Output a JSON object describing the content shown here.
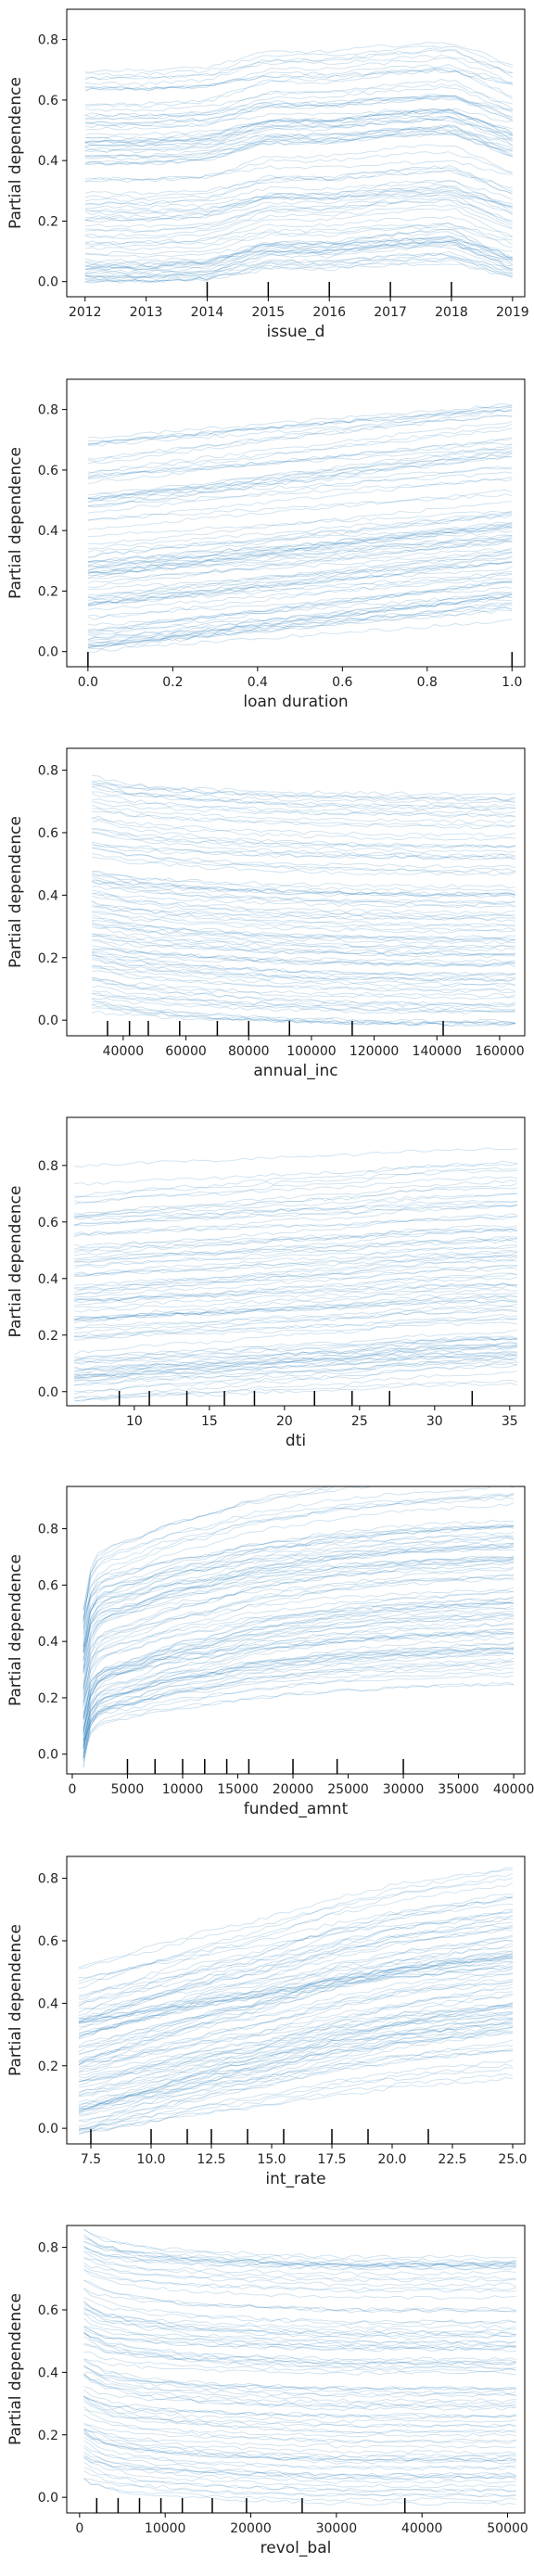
{
  "figure": {
    "background": "#ffffff",
    "line_color": "#1f77b4",
    "rug_color": "#000000"
  },
  "chart_data": [
    {
      "type": "line",
      "xlabel": "issue_d",
      "ylabel": "Partial dependence",
      "xlim": [
        2011.7,
        2019.2
      ],
      "ylim": [
        -0.05,
        0.9
      ],
      "xticks": [
        2012,
        2013,
        2014,
        2015,
        2016,
        2017,
        2018,
        2019
      ],
      "xtick_labels": [
        "2012",
        "2013",
        "2014",
        "2015",
        "2016",
        "2017",
        "2018",
        "2019"
      ],
      "yticks": [
        0.0,
        0.2,
        0.4,
        0.6,
        0.8
      ],
      "ytick_labels": [
        "0.0",
        "0.2",
        "0.4",
        "0.6",
        "0.8"
      ],
      "x": [
        2012,
        2013,
        2014,
        2015,
        2016,
        2017,
        2018,
        2019
      ],
      "shape": [
        0.0,
        0.0,
        0.01,
        0.06,
        0.06,
        0.08,
        0.09,
        0.02
      ],
      "base_range": [
        0.0,
        0.7
      ],
      "n_lines": 90,
      "rug": [
        2014,
        2015,
        2016,
        2017,
        2018
      ],
      "chart_type": "ice"
    },
    {
      "type": "line",
      "xlabel": "loan duration",
      "ylabel": "Partial dependence",
      "xlim": [
        -0.05,
        1.03
      ],
      "ylim": [
        -0.05,
        0.9
      ],
      "xticks": [
        0.0,
        0.2,
        0.4,
        0.6,
        0.8,
        1.0
      ],
      "xtick_labels": [
        "0.0",
        "0.2",
        "0.4",
        "0.6",
        "0.8",
        "1.0"
      ],
      "yticks": [
        0.0,
        0.2,
        0.4,
        0.6,
        0.8
      ],
      "ytick_labels": [
        "0.0",
        "0.2",
        "0.4",
        "0.6",
        "0.8"
      ],
      "x": [
        0.0,
        1.0
      ],
      "shape": [
        0.0,
        0.13
      ],
      "base_range": [
        0.0,
        0.71
      ],
      "n_lines": 90,
      "rug": [
        0.0,
        1.0
      ],
      "chart_type": "ice"
    },
    {
      "type": "line",
      "xlabel": "annual_inc",
      "ylabel": "Partial dependence",
      "xlim": [
        22000,
        168000
      ],
      "ylim": [
        -0.05,
        0.87
      ],
      "xticks": [
        40000,
        60000,
        80000,
        100000,
        120000,
        140000,
        160000
      ],
      "xtick_labels": [
        "40000",
        "60000",
        "80000",
        "100000",
        "120000",
        "140000",
        "160000"
      ],
      "yticks": [
        0.0,
        0.2,
        0.4,
        0.6,
        0.8
      ],
      "ytick_labels": [
        "0.0",
        "0.2",
        "0.4",
        "0.6",
        "0.8"
      ],
      "x": [
        30000,
        36000,
        42000,
        48000,
        55000,
        62000,
        70000,
        80000,
        90000,
        110000,
        140000,
        165000
      ],
      "shape": [
        0.06,
        0.05,
        0.04,
        0.035,
        0.03,
        0.025,
        0.02,
        0.015,
        0.01,
        0.005,
        0.0,
        0.0
      ],
      "base_range": [
        -0.02,
        0.74
      ],
      "n_lines": 90,
      "rug": [
        35000,
        42000,
        48000,
        58000,
        70000,
        80000,
        93000,
        113000,
        142000
      ],
      "chart_type": "ice"
    },
    {
      "type": "line",
      "xlabel": "dti",
      "ylabel": "Partial dependence",
      "xlim": [
        5.5,
        36
      ],
      "ylim": [
        -0.05,
        0.97
      ],
      "xticks": [
        5,
        10,
        15,
        20,
        25,
        30,
        35
      ],
      "xtick_labels": [
        "5",
        "10",
        "15",
        "20",
        "25",
        "30",
        "35"
      ],
      "yticks": [
        0.0,
        0.2,
        0.4,
        0.6,
        0.8
      ],
      "ytick_labels": [
        "0.0",
        "0.2",
        "0.4",
        "0.6",
        "0.8"
      ],
      "x": [
        6,
        9,
        11,
        13.5,
        16,
        18,
        22,
        24.5,
        27,
        30,
        32.5,
        35.5
      ],
      "shape": [
        0.0,
        0.01,
        0.02,
        0.025,
        0.03,
        0.04,
        0.05,
        0.055,
        0.07,
        0.08,
        0.085,
        0.09
      ],
      "base_range": [
        -0.03,
        0.8
      ],
      "n_lines": 90,
      "rug": [
        9,
        11,
        13.5,
        16,
        18,
        22,
        24.5,
        27,
        32.5
      ],
      "chart_type": "ice"
    },
    {
      "type": "line",
      "xlabel": "funded_amnt",
      "ylabel": "Partial dependence",
      "xlim": [
        -500,
        41000
      ],
      "ylim": [
        -0.07,
        0.95
      ],
      "xticks": [
        0,
        5000,
        10000,
        15000,
        20000,
        25000,
        30000,
        35000,
        40000
      ],
      "xtick_labels": [
        "0",
        "5000",
        "10000",
        "15000",
        "20000",
        "25000",
        "30000",
        "35000",
        "40000"
      ],
      "yticks": [
        0.0,
        0.2,
        0.4,
        0.6,
        0.8
      ],
      "ytick_labels": [
        "0.0",
        "0.2",
        "0.4",
        "0.6",
        "0.8"
      ],
      "x": [
        1000,
        1500,
        2500,
        4000,
        6000,
        8000,
        10000,
        12000,
        14000,
        16000,
        20000,
        24000,
        30000,
        35000,
        40000
      ],
      "shape": [
        0.0,
        0.12,
        0.18,
        0.2,
        0.22,
        0.25,
        0.27,
        0.28,
        0.3,
        0.32,
        0.34,
        0.36,
        0.38,
        0.39,
        0.4
      ],
      "base_range": [
        -0.05,
        0.52
      ],
      "n_lines": 90,
      "rug": [
        5000,
        7500,
        10000,
        12000,
        14000,
        16000,
        20000,
        24000,
        30000
      ],
      "chart_type": "ice"
    },
    {
      "type": "line",
      "xlabel": "int_rate",
      "ylabel": "Partial dependence",
      "xlim": [
        6.5,
        25.5
      ],
      "ylim": [
        -0.05,
        0.87
      ],
      "xticks": [
        7.5,
        10.0,
        12.5,
        15.0,
        17.5,
        20.0,
        22.5,
        25.0
      ],
      "xtick_labels": [
        "7.5",
        "10.0",
        "12.5",
        "15.0",
        "17.5",
        "20.0",
        "22.5",
        "25.0"
      ],
      "yticks": [
        0.0,
        0.2,
        0.4,
        0.6,
        0.8
      ],
      "ytick_labels": [
        "0.0",
        "0.2",
        "0.4",
        "0.6",
        "0.8"
      ],
      "x": [
        7.0,
        8.0,
        9.0,
        10.0,
        11.0,
        12.0,
        13.0,
        14.0,
        15.0,
        16.0,
        17.0,
        18.0,
        19.0,
        20.0,
        21.0,
        22.0,
        23.0,
        24.0,
        25.0
      ],
      "shape": [
        0.0,
        0.02,
        0.04,
        0.06,
        0.08,
        0.1,
        0.12,
        0.13,
        0.15,
        0.17,
        0.19,
        0.21,
        0.22,
        0.24,
        0.25,
        0.26,
        0.27,
        0.28,
        0.29
      ],
      "base_range": [
        -0.02,
        0.52
      ],
      "n_lines": 90,
      "rug": [
        7.5,
        10.0,
        11.5,
        12.5,
        14.0,
        15.5,
        17.5,
        19.0,
        21.5
      ],
      "chart_type": "ice"
    },
    {
      "type": "line",
      "xlabel": "revol_bal",
      "ylabel": "Partial dependence",
      "xlim": [
        -1500,
        52000
      ],
      "ylim": [
        -0.05,
        0.87
      ],
      "xticks": [
        0,
        10000,
        20000,
        30000,
        40000,
        50000
      ],
      "xtick_labels": [
        "0",
        "10000",
        "20000",
        "30000",
        "40000",
        "50000"
      ],
      "yticks": [
        0.0,
        0.2,
        0.4,
        0.6,
        0.8
      ],
      "ytick_labels": [
        "0.0",
        "0.2",
        "0.4",
        "0.6",
        "0.8"
      ],
      "x": [
        500,
        1500,
        3000,
        5000,
        7500,
        10000,
        12500,
        15000,
        20000,
        25000,
        30000,
        40000,
        51000
      ],
      "shape": [
        0.08,
        0.065,
        0.05,
        0.04,
        0.03,
        0.025,
        0.02,
        0.015,
        0.01,
        0.005,
        0.0,
        0.0,
        0.0
      ],
      "base_range": [
        -0.02,
        0.77
      ],
      "n_lines": 90,
      "rug": [
        2000,
        4500,
        7000,
        9500,
        12000,
        15500,
        19500,
        26000,
        38000
      ],
      "chart_type": "ice"
    }
  ]
}
